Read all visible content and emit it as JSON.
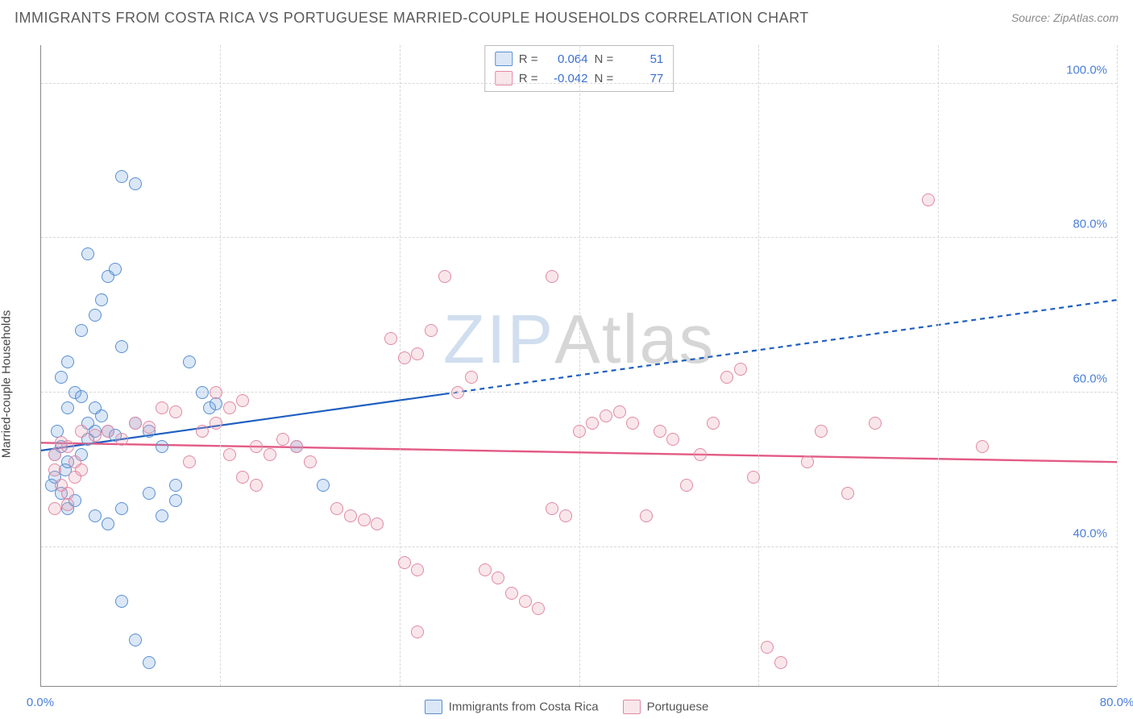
{
  "title": "IMMIGRANTS FROM COSTA RICA VS PORTUGUESE MARRIED-COUPLE HOUSEHOLDS CORRELATION CHART",
  "source": "Source: ZipAtlas.com",
  "y_axis_title": "Married-couple Households",
  "watermark": {
    "left": "ZIP",
    "right": "Atlas"
  },
  "chart": {
    "type": "scatter",
    "background_color": "#ffffff",
    "grid_color": "#d8d8d8",
    "axis_color": "#888888",
    "tick_label_color": "#4a7fd8",
    "tick_fontsize": 15,
    "xlim": [
      0,
      80
    ],
    "ylim": [
      22,
      105
    ],
    "x_ticks": [
      0,
      13.33,
      26.67,
      40,
      53.33,
      66.67,
      80
    ],
    "x_tick_labels": {
      "0": "0.0%",
      "80": "80.0%"
    },
    "y_ticks": [
      40,
      60,
      80,
      100
    ],
    "y_tick_labels": {
      "40": "40.0%",
      "60": "60.0%",
      "80": "80.0%",
      "100": "100.0%"
    },
    "marker_radius": 8,
    "marker_stroke_width": 1.5,
    "marker_fill_opacity": 0.25,
    "series": [
      {
        "id": "costa_rica",
        "label": "Immigrants from Costa Rica",
        "color": "#6b9fe0",
        "fill": "rgba(107,159,224,0.25)",
        "stroke": "#5a8fd0",
        "R": "0.064",
        "N": "51",
        "trend": {
          "color": "#1f5fc0",
          "width": 2.2,
          "solid_end_x": 30,
          "x1": 0,
          "y1": 52.5,
          "x2": 80,
          "y2": 72.0
        },
        "points": [
          [
            1,
            52
          ],
          [
            1.5,
            53
          ],
          [
            1.2,
            55
          ],
          [
            1.8,
            50
          ],
          [
            0.8,
            48
          ],
          [
            1.5,
            47
          ],
          [
            2,
            45
          ],
          [
            2.5,
            46
          ],
          [
            1,
            49
          ],
          [
            2,
            51
          ],
          [
            3,
            52
          ],
          [
            3.5,
            54
          ],
          [
            4,
            55
          ],
          [
            4.5,
            57
          ],
          [
            5,
            55
          ],
          [
            5.5,
            54.5
          ],
          [
            2,
            58
          ],
          [
            2.5,
            60
          ],
          [
            3,
            59.5
          ],
          [
            3.5,
            56
          ],
          [
            4,
            58
          ],
          [
            1.5,
            62
          ],
          [
            2,
            64
          ],
          [
            3,
            68
          ],
          [
            3.5,
            78
          ],
          [
            4,
            70
          ],
          [
            4.5,
            72
          ],
          [
            5,
            75
          ],
          [
            5.5,
            76
          ],
          [
            6,
            66
          ],
          [
            7,
            56
          ],
          [
            8,
            47
          ],
          [
            9,
            44
          ],
          [
            10,
            46
          ],
          [
            11,
            64
          ],
          [
            12,
            60
          ],
          [
            12.5,
            58
          ],
          [
            13,
            58.5
          ],
          [
            6,
            88
          ],
          [
            7,
            87
          ],
          [
            8,
            55
          ],
          [
            9,
            53
          ],
          [
            10,
            48
          ],
          [
            6,
            33
          ],
          [
            7,
            28
          ],
          [
            8,
            25
          ],
          [
            4,
            44
          ],
          [
            5,
            43
          ],
          [
            6,
            45
          ],
          [
            19,
            53
          ],
          [
            21,
            48
          ]
        ]
      },
      {
        "id": "portuguese",
        "label": "Portuguese",
        "color": "#e89ab0",
        "fill": "rgba(232,154,176,0.25)",
        "stroke": "#e089a3",
        "R": "-0.042",
        "N": "77",
        "trend": {
          "color": "#e35a85",
          "width": 2.4,
          "solid_end_x": 80,
          "x1": 0,
          "y1": 53.5,
          "x2": 80,
          "y2": 51.0
        },
        "points": [
          [
            1,
            52
          ],
          [
            1.5,
            53.5
          ],
          [
            2,
            53
          ],
          [
            2.5,
            51
          ],
          [
            3,
            50
          ],
          [
            1,
            50
          ],
          [
            1.5,
            48
          ],
          [
            2,
            47
          ],
          [
            2.5,
            49
          ],
          [
            3,
            55
          ],
          [
            4,
            54.5
          ],
          [
            5,
            55
          ],
          [
            6,
            54
          ],
          [
            7,
            56
          ],
          [
            8,
            55.5
          ],
          [
            9,
            58
          ],
          [
            10,
            57.5
          ],
          [
            11,
            51
          ],
          [
            12,
            55
          ],
          [
            13,
            56
          ],
          [
            14,
            58
          ],
          [
            15,
            59
          ],
          [
            16,
            53
          ],
          [
            17,
            52
          ],
          [
            18,
            54
          ],
          [
            19,
            53
          ],
          [
            20,
            51
          ],
          [
            13,
            60
          ],
          [
            14,
            52
          ],
          [
            15,
            49
          ],
          [
            16,
            48
          ],
          [
            22,
            45
          ],
          [
            23,
            44
          ],
          [
            24,
            43.5
          ],
          [
            25,
            43
          ],
          [
            27,
            38
          ],
          [
            28,
            37
          ],
          [
            26,
            67
          ],
          [
            27,
            64.5
          ],
          [
            28,
            65
          ],
          [
            29,
            68
          ],
          [
            30,
            75
          ],
          [
            31,
            60
          ],
          [
            32,
            62
          ],
          [
            33,
            37
          ],
          [
            34,
            36
          ],
          [
            35,
            34
          ],
          [
            36,
            33
          ],
          [
            37,
            32
          ],
          [
            38,
            45
          ],
          [
            39,
            44
          ],
          [
            40,
            55
          ],
          [
            41,
            56
          ],
          [
            42,
            57
          ],
          [
            43,
            57.5
          ],
          [
            44,
            56
          ],
          [
            45,
            44
          ],
          [
            46,
            55
          ],
          [
            47,
            54
          ],
          [
            48,
            48
          ],
          [
            49,
            52
          ],
          [
            50,
            56
          ],
          [
            51,
            62
          ],
          [
            52,
            63
          ],
          [
            53,
            49
          ],
          [
            54,
            27
          ],
          [
            55,
            25
          ],
          [
            57,
            51
          ],
          [
            58,
            55
          ],
          [
            60,
            47
          ],
          [
            62,
            56
          ],
          [
            66,
            85
          ],
          [
            70,
            53
          ],
          [
            38,
            75
          ],
          [
            28,
            29
          ],
          [
            1,
            45
          ],
          [
            2,
            45.5
          ]
        ]
      }
    ]
  },
  "stats_box": {
    "rows": [
      {
        "swatch_series": "costa_rica",
        "r_label": "R =",
        "n_label": "N ="
      },
      {
        "swatch_series": "portuguese",
        "r_label": "R =",
        "n_label": "N ="
      }
    ]
  },
  "x_legend": [
    {
      "series": "costa_rica"
    },
    {
      "series": "portuguese"
    }
  ]
}
